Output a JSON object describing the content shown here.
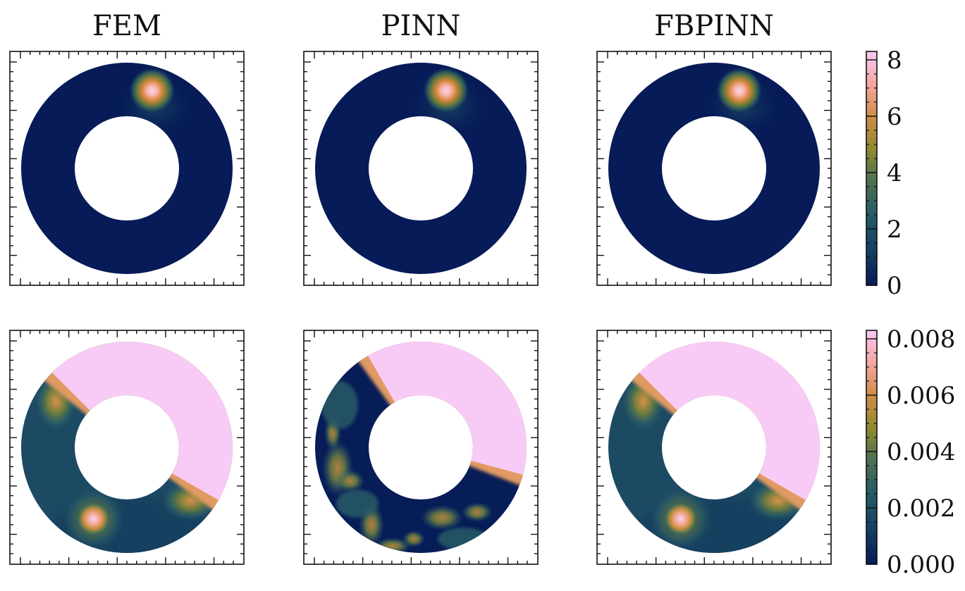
{
  "chart_data": {
    "type": "heatmap",
    "domain": "annulus",
    "column_titles": [
      "FEM",
      "PINN",
      "FBPINN"
    ],
    "rows": [
      {
        "name": "",
        "colorbar": {
          "ticks": [
            "0",
            "2",
            "4",
            "6",
            "8"
          ],
          "tick_values": [
            0,
            2,
            4,
            6,
            8
          ],
          "range": [
            0,
            8.3
          ]
        },
        "panels": [
          {
            "column": "FEM",
            "peak": {
              "angle_deg": 72,
              "value": 8.3
            },
            "max_value": 8.3
          },
          {
            "column": "PINN",
            "peak": {
              "angle_deg": 72,
              "value": 8.3
            },
            "max_value": 8.3
          },
          {
            "column": "FBPINN",
            "peak": {
              "angle_deg": 72,
              "value": 8.3
            },
            "max_value": 8.3
          }
        ]
      },
      {
        "name": "",
        "colorbar": {
          "ticks": [
            "0.000",
            "0.002",
            "0.004",
            "0.006",
            "0.008"
          ],
          "tick_values": [
            0,
            0.002,
            0.004,
            0.006,
            0.008
          ],
          "range": [
            0,
            0.0083
          ]
        },
        "panels": [
          {
            "column": "FEM",
            "saturated_region_deg": [
              -30,
              135
            ],
            "hotspot": {
              "angle_deg": 245,
              "value": 0.0083
            }
          },
          {
            "column": "PINN",
            "saturated_region_deg": [
              -15,
              120
            ],
            "error_pattern": "patchy"
          },
          {
            "column": "FBPINN",
            "saturated_region_deg": [
              -30,
              135
            ],
            "hotspot": {
              "angle_deg": 245,
              "value": 0.0083
            }
          }
        ]
      }
    ],
    "colormap": [
      "#061b57",
      "#1d4a63",
      "#2f6a6b",
      "#8f8a2f",
      "#d08d48",
      "#f5a6a0",
      "#f7c9f4"
    ],
    "colormap_name": "batlow-like"
  }
}
